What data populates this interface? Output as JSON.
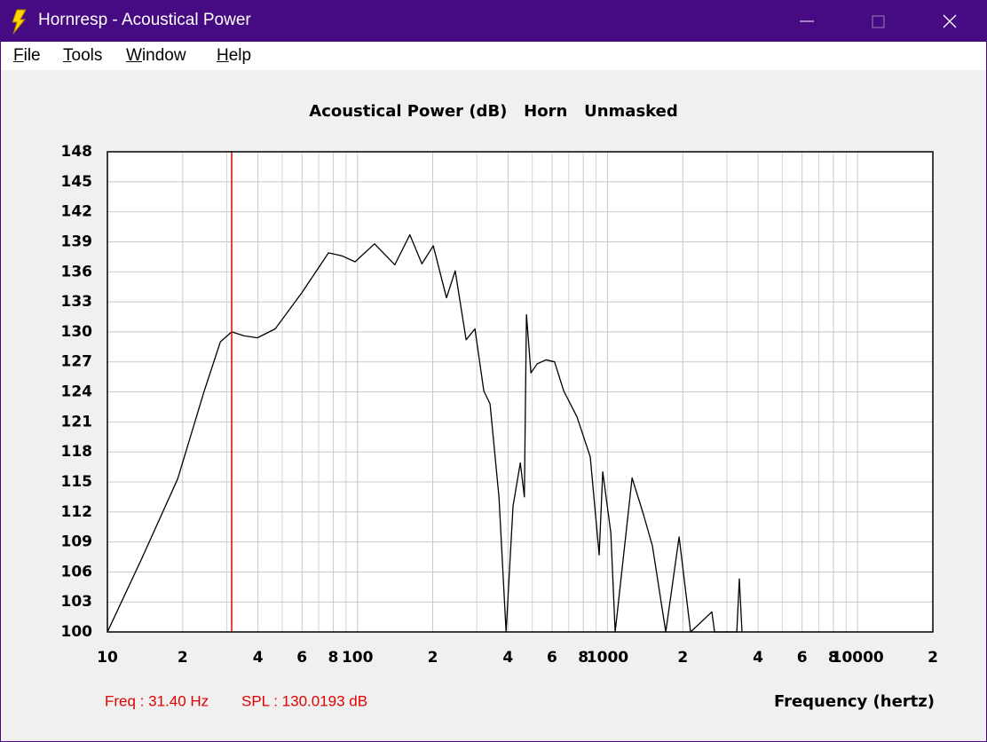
{
  "window": {
    "title": "Hornresp - Acoustical Power",
    "menu": [
      "File",
      "Tools",
      "Window",
      "Help"
    ]
  },
  "chart_data": {
    "type": "line",
    "title": "Acoustical Power (dB)   Horn   Unmasked",
    "xlabel": "Frequency (hertz)",
    "xscale": "log",
    "x": [
      10,
      13.7,
      19.1,
      24.4,
      28.3,
      31.4,
      35.2,
      39.8,
      46.9,
      59.9,
      76.6,
      86.6,
      97.8,
      117,
      141,
      162,
      181,
      201,
      227,
      246,
      272,
      295,
      320,
      339,
      368,
      393,
      419,
      448,
      465,
      474,
      494,
      523,
      567,
      614,
      668,
      755,
      853,
      926,
      957,
      1031,
      1073,
      1254,
      1394,
      1512,
      1710,
      1933,
      2149,
      2614,
      2680,
      3289,
      3366,
      3450
    ],
    "series": [
      {
        "color": "#000000",
        "values": [
          100,
          107.3,
          115.3,
          124.1,
          129.0,
          130.0,
          129.6,
          129.4,
          130.3,
          133.9,
          137.9,
          137.6,
          137.0,
          138.8,
          136.7,
          139.7,
          136.8,
          138.6,
          133.4,
          136.1,
          129.2,
          130.3,
          124.1,
          122.8,
          113.5,
          100,
          112.6,
          116.9,
          113.5,
          131.7,
          125.9,
          126.8,
          127.2,
          127.0,
          124.1,
          121.5,
          117.5,
          107.7,
          116.0,
          109.9,
          100,
          115.4,
          111.7,
          108.6,
          100,
          109.5,
          100,
          102,
          100,
          100,
          105.3,
          100
        ]
      }
    ],
    "xlim": [
      10,
      20000
    ],
    "xticks": [
      {
        "value": 10,
        "label": "10"
      },
      {
        "value": 20,
        "label": "2"
      },
      {
        "value": 40,
        "label": "4"
      },
      {
        "value": 60,
        "label": "6"
      },
      {
        "value": 80,
        "label": "8"
      },
      {
        "value": 100,
        "label": "100"
      },
      {
        "value": 200,
        "label": "2"
      },
      {
        "value": 400,
        "label": "4"
      },
      {
        "value": 600,
        "label": "6"
      },
      {
        "value": 800,
        "label": "8"
      },
      {
        "value": 1000,
        "label": "1000"
      },
      {
        "value": 2000,
        "label": "2"
      },
      {
        "value": 4000,
        "label": "4"
      },
      {
        "value": 6000,
        "label": "6"
      },
      {
        "value": 8000,
        "label": "8"
      },
      {
        "value": 10000,
        "label": "10000"
      },
      {
        "value": 20000,
        "label": "2"
      }
    ],
    "xminor": [
      30,
      50,
      70,
      90,
      300,
      500,
      700,
      900,
      3000,
      5000,
      7000,
      9000
    ],
    "ylim": [
      100,
      148
    ],
    "yticks": [
      100,
      103,
      106,
      109,
      112,
      115,
      118,
      121,
      124,
      127,
      130,
      133,
      136,
      139,
      142,
      145,
      148
    ],
    "grid": true,
    "cursor": {
      "x": 31.4,
      "color": "#e00000"
    },
    "readout": [
      "Freq : 31.40 Hz",
      "SPL : 130.0193 dB"
    ]
  }
}
